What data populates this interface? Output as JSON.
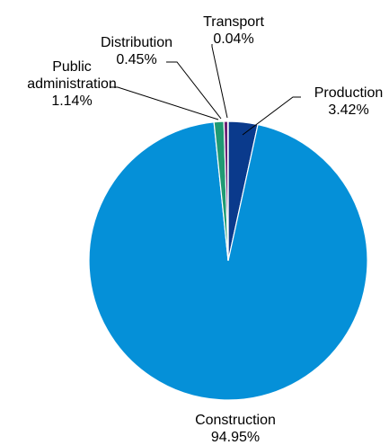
{
  "title": "",
  "chart_data": {
    "type": "pie",
    "title": "",
    "start": "12 o'clock",
    "direction": "clockwise",
    "categories": [
      "Production",
      "Construction",
      "Public administration",
      "Distribution",
      "Transport"
    ],
    "label_lines": [
      [
        "Production",
        "3.42%"
      ],
      [
        "Construction",
        "94.95%"
      ],
      [
        "Public",
        "administration",
        "1.14%"
      ],
      [
        "Distribution",
        "0.45%"
      ],
      [
        "Transport",
        "0.04%"
      ]
    ],
    "values": [
      3.42,
      94.95,
      1.14,
      0.45,
      0.04
    ],
    "colors": [
      "#0a3a8c",
      "#0590d8",
      "#1f9a73",
      "#6b2075",
      "#6fb23a"
    ],
    "legend": "none"
  }
}
